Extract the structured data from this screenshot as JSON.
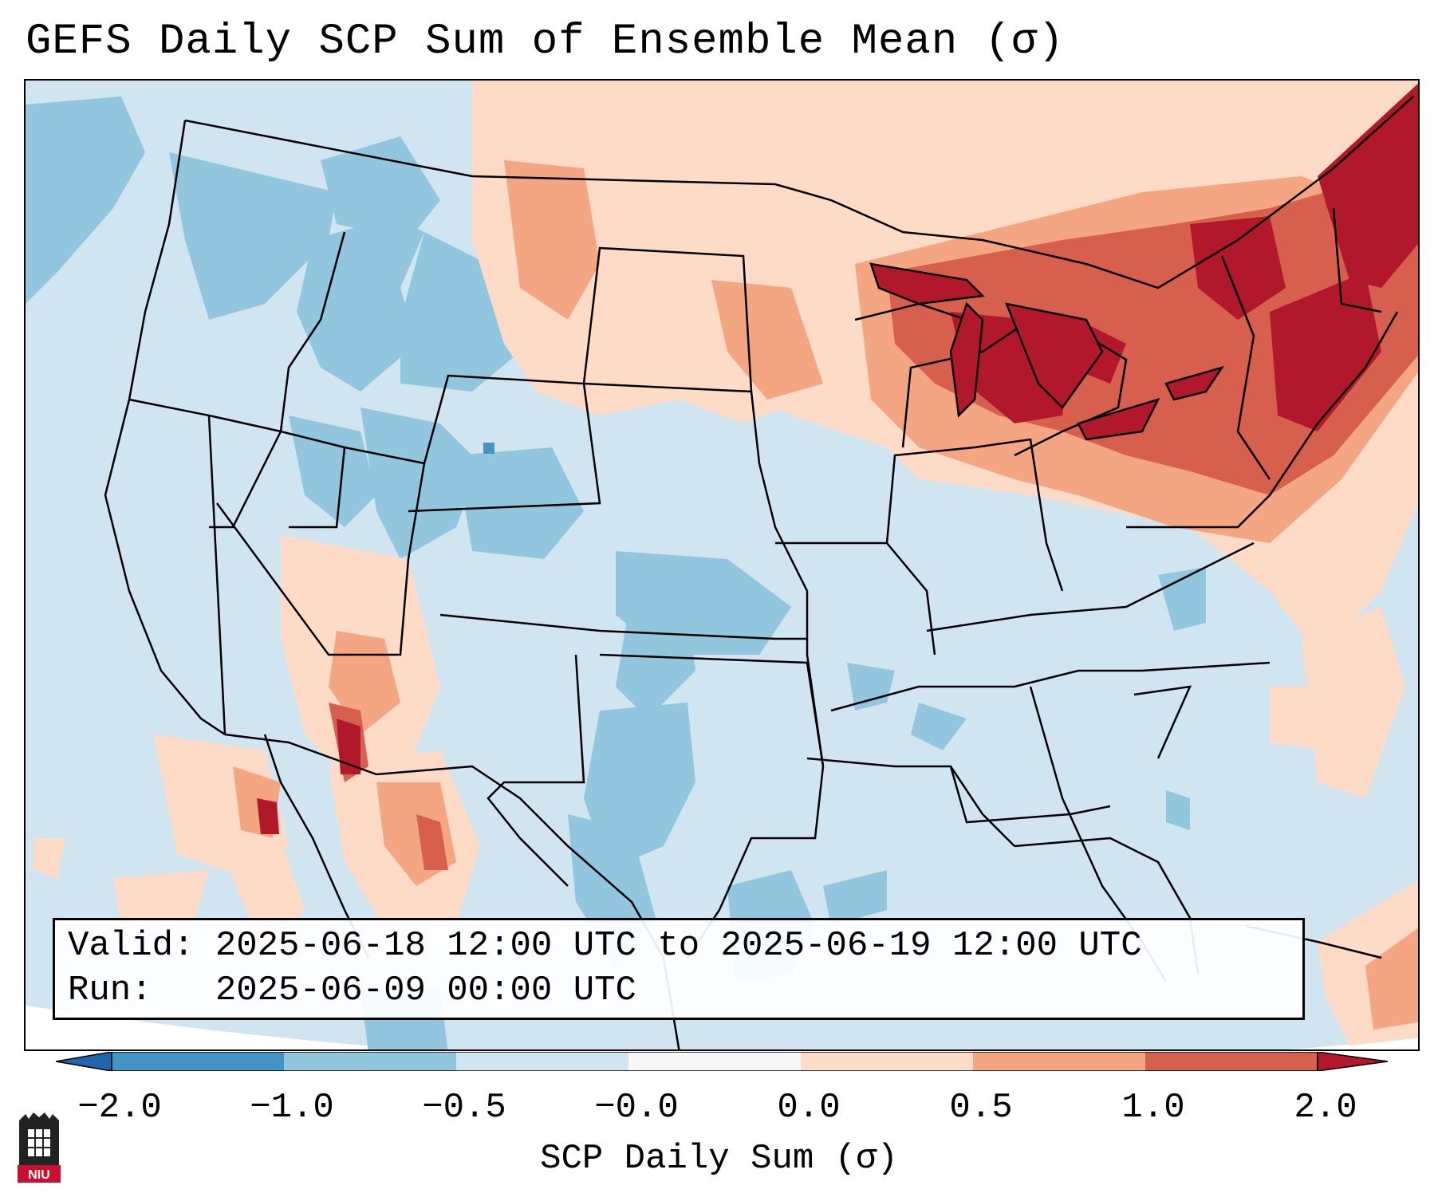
{
  "title": "GEFS Daily SCP Sum of Ensemble Mean (σ)",
  "info": {
    "valid_line": "Valid: 2025-06-18 12:00 UTC to 2025-06-19 12:00 UTC",
    "run_line": "Run:   2025-06-09 00:00 UTC"
  },
  "colorbar": {
    "label": "SCP Daily Sum (σ)",
    "ticks": [
      "−2.0",
      "−1.0",
      "−0.5",
      "−0.0",
      "0.0",
      "0.5",
      "1.0",
      "2.0"
    ],
    "colors": [
      "#4393c3",
      "#92c5de",
      "#d1e5f0",
      "#f7f7f7",
      "#fddbc7",
      "#f4a582",
      "#d6604d",
      "#b2182b"
    ],
    "extend_low_color": "#2166ac",
    "extend_high_color": "#67001f"
  },
  "map": {
    "projection": "lambert-conic",
    "region": "CONUS",
    "features": [
      "state-borders",
      "country-borders",
      "coastlines",
      "great-lakes"
    ],
    "anomaly_summary": [
      {
        "region": "Great Lakes / Northeast",
        "category": "1.0 to 2.0"
      },
      {
        "region": "Northern Plains",
        "category": "0.0 to 1.0"
      },
      {
        "region": "Northwest / Rockies",
        "category": "-1.0 to -0.5"
      },
      {
        "region": "Desert Southwest",
        "category": "0.5 to 2.0"
      },
      {
        "region": "Southern Plains",
        "category": "-1.0 to -0.5"
      }
    ]
  },
  "logo": {
    "name": "NIU",
    "text": "NIU"
  }
}
